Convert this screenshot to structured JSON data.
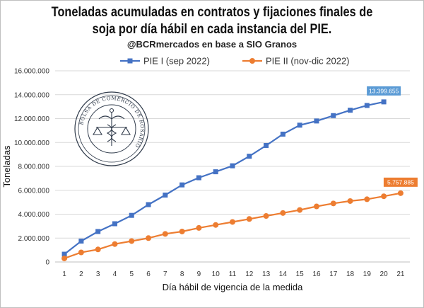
{
  "title_line1": "Toneladas acumuladas en contratos y fijaciones finales de",
  "title_line2": "soja por día hábil en cada instancia del PIE.",
  "subtitle": "@BCRmercados en base a SIO Granos",
  "logo_text": "BOLSA DE COMERCIO DE ROSARIO",
  "colors": {
    "series1": "#4472C4",
    "series2": "#ED7D31",
    "grid": "#d9d9d9"
  },
  "chart_data": {
    "type": "line",
    "x": [
      1,
      2,
      3,
      4,
      5,
      6,
      7,
      8,
      9,
      10,
      11,
      12,
      13,
      14,
      15,
      16,
      17,
      18,
      19,
      20,
      21
    ],
    "x_ticks": [
      "1",
      "2",
      "3",
      "4",
      "5",
      "6",
      "7",
      "8",
      "9",
      "10",
      "11",
      "12",
      "13",
      "14",
      "15",
      "16",
      "17",
      "18",
      "19",
      "20",
      "21"
    ],
    "xlabel": "Día hábil de vigencia de la medida",
    "ylabel": "Toneladas",
    "ylim": [
      0,
      16000000
    ],
    "y_ticks": [
      0,
      2000000,
      4000000,
      6000000,
      8000000,
      10000000,
      12000000,
      14000000,
      16000000
    ],
    "y_tick_labels": [
      "0",
      "2.000.000",
      "4.000.000",
      "6.000.000",
      "8.000.000",
      "10.000.000",
      "12.000.000",
      "14.000.000",
      "16.000.000"
    ],
    "grid": true,
    "legend_position": "top",
    "series": [
      {
        "name": "PIE I (sep 2022)",
        "x": [
          1,
          2,
          3,
          4,
          5,
          6,
          7,
          8,
          9,
          10,
          11,
          12,
          13,
          14,
          15,
          16,
          17,
          18,
          19,
          20
        ],
        "values": [
          650000,
          1750000,
          2550000,
          3200000,
          3900000,
          4800000,
          5600000,
          6450000,
          7050000,
          7550000,
          8050000,
          8850000,
          9750000,
          10700000,
          11450000,
          11800000,
          12250000,
          12700000,
          13100000,
          13399655
        ],
        "end_label": "13.399.655"
      },
      {
        "name": "PIE II (nov-dic 2022)",
        "x": [
          1,
          2,
          3,
          4,
          5,
          6,
          7,
          8,
          9,
          10,
          11,
          12,
          13,
          14,
          15,
          16,
          17,
          18,
          19,
          20,
          21
        ],
        "values": [
          300000,
          800000,
          1050000,
          1500000,
          1750000,
          2000000,
          2350000,
          2550000,
          2850000,
          3100000,
          3350000,
          3600000,
          3850000,
          4100000,
          4350000,
          4650000,
          4900000,
          5100000,
          5250000,
          5500000,
          5757885
        ],
        "end_label": "5.757.885"
      }
    ]
  }
}
